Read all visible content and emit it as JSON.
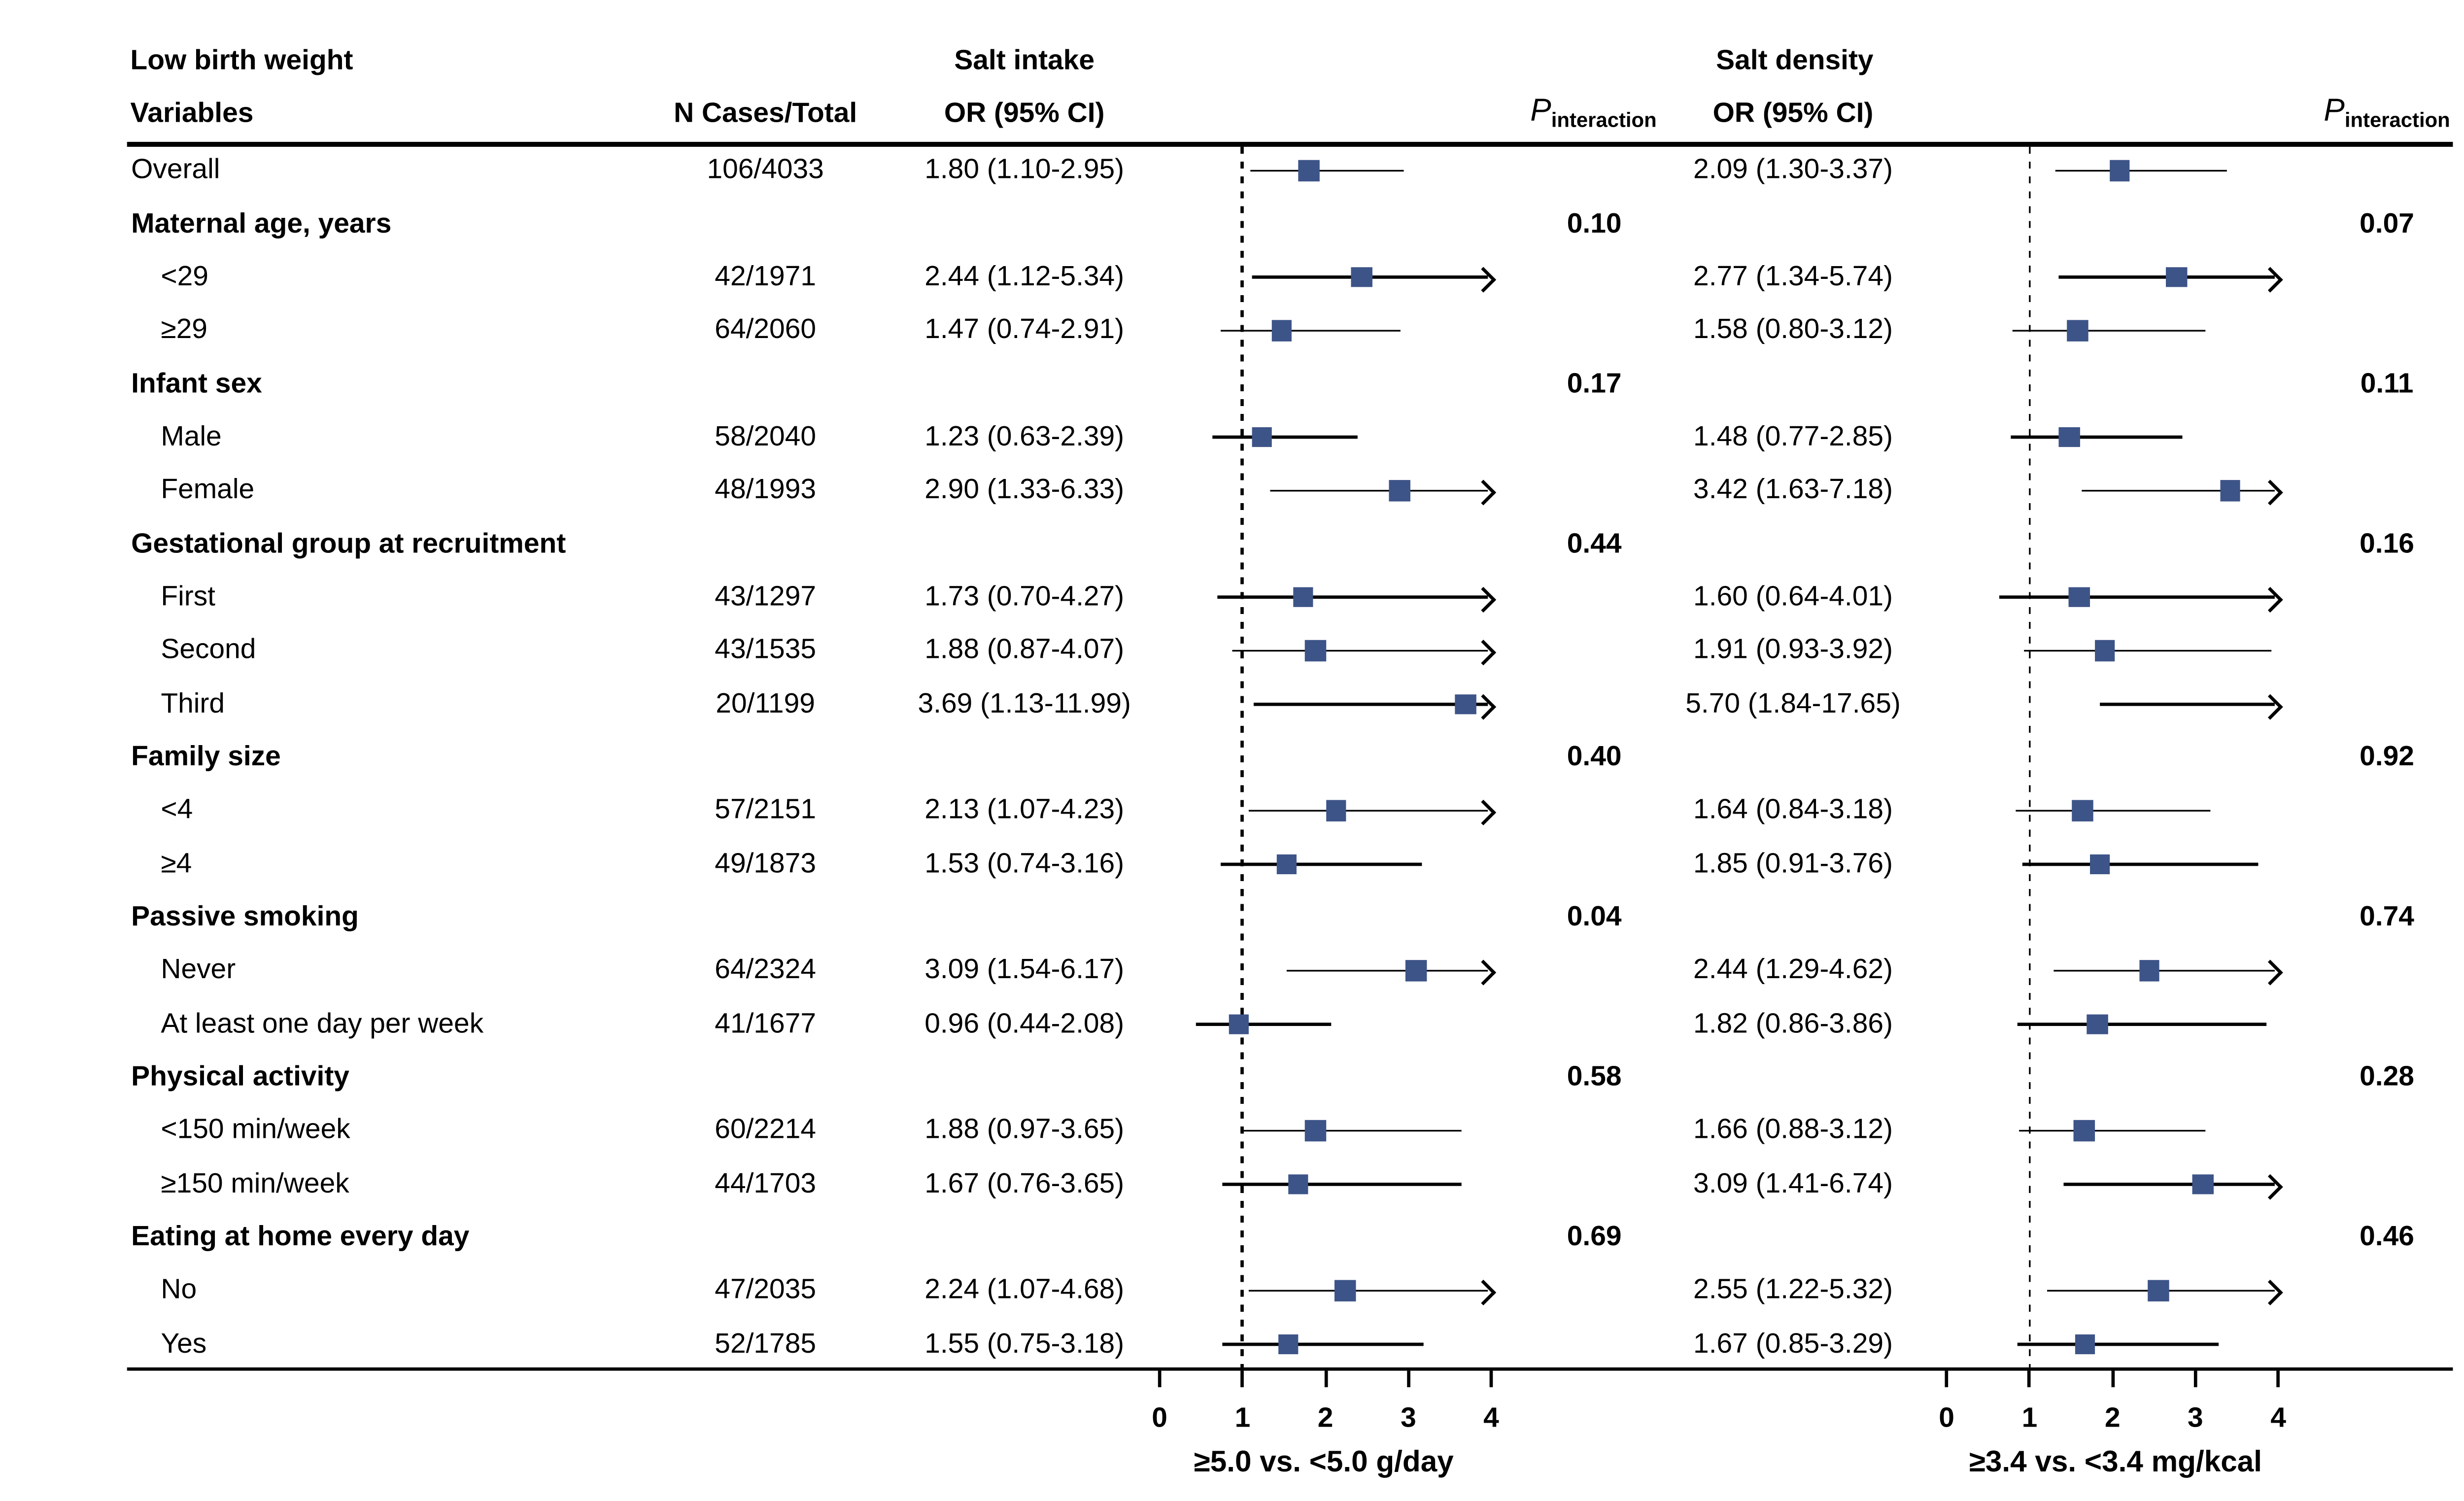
{
  "header": {
    "title_line1": "Low birth weight",
    "title_line2": "Variables",
    "n_header": "N Cases/Total",
    "panel1_title": "Salt intake",
    "panel2_title": "Salt density",
    "or_header1": "OR (95% CI)",
    "or_header2": "OR (95% CI)",
    "p_label": "P",
    "p_sub": "interaction"
  },
  "colors": {
    "marker": "#3D5488",
    "line": "#000000",
    "text": "#000000"
  },
  "chart_data": {
    "type": "forest",
    "panels": [
      {
        "name": "Salt intake",
        "comparison": "≥5.0 vs. <5.0 g/day"
      },
      {
        "name": "Salt density",
        "comparison": "≥3.4 vs. <3.4 mg/kcal"
      }
    ],
    "axis": {
      "ticks": [
        "0",
        "1",
        "2",
        "3",
        "4"
      ],
      "tick_values": [
        0,
        1,
        2,
        3,
        4
      ],
      "xmin": 0,
      "xmax": 4,
      "ref_line": 1,
      "clip_max": 4,
      "left_title": "≥5.0 vs. <5.0 g/day",
      "right_title": "≥3.4 vs. <3.4 mg/kcal"
    },
    "rows": [
      {
        "type": "data",
        "indent": false,
        "label": "Overall",
        "n": "106/4033",
        "intake": {
          "text": "1.80 (1.10-2.95)",
          "or": 1.8,
          "lo": 1.1,
          "hi": 2.95
        },
        "density": {
          "text": "2.09 (1.30-3.37)",
          "or": 2.09,
          "lo": 1.3,
          "hi": 3.37
        },
        "p_intake": "",
        "p_density": ""
      },
      {
        "type": "group",
        "indent": false,
        "label": "Maternal age, years",
        "n": "",
        "p_intake": "0.10",
        "p_density": "0.07"
      },
      {
        "type": "data",
        "indent": true,
        "label": "<29",
        "n": "42/1971",
        "intake": {
          "text": "2.44 (1.12-5.34)",
          "or": 2.44,
          "lo": 1.12,
          "hi": 5.34
        },
        "density": {
          "text": "2.77 (1.34-5.74)",
          "or": 2.77,
          "lo": 1.34,
          "hi": 5.74
        },
        "p_intake": "",
        "p_density": ""
      },
      {
        "type": "data",
        "indent": true,
        "label": "≥29",
        "n": "64/2060",
        "intake": {
          "text": "1.47 (0.74-2.91)",
          "or": 1.47,
          "lo": 0.74,
          "hi": 2.91
        },
        "density": {
          "text": "1.58 (0.80-3.12)",
          "or": 1.58,
          "lo": 0.8,
          "hi": 3.12
        },
        "p_intake": "",
        "p_density": ""
      },
      {
        "type": "group",
        "indent": false,
        "label": "Infant sex",
        "n": "",
        "p_intake": "0.17",
        "p_density": "0.11"
      },
      {
        "type": "data",
        "indent": true,
        "label": "Male",
        "n": "58/2040",
        "intake": {
          "text": "1.23 (0.63-2.39)",
          "or": 1.23,
          "lo": 0.63,
          "hi": 2.39
        },
        "density": {
          "text": "1.48 (0.77-2.85)",
          "or": 1.48,
          "lo": 0.77,
          "hi": 2.85
        },
        "p_intake": "",
        "p_density": ""
      },
      {
        "type": "data",
        "indent": true,
        "label": "Female",
        "n": "48/1993",
        "intake": {
          "text": "2.90 (1.33-6.33)",
          "or": 2.9,
          "lo": 1.33,
          "hi": 6.33
        },
        "density": {
          "text": "3.42 (1.63-7.18)",
          "or": 3.42,
          "lo": 1.63,
          "hi": 7.18
        },
        "p_intake": "",
        "p_density": ""
      },
      {
        "type": "group",
        "indent": false,
        "label": "Gestational group at recruitment",
        "n": "",
        "p_intake": "0.44",
        "p_density": "0.16"
      },
      {
        "type": "data",
        "indent": true,
        "label": "First",
        "n": "43/1297",
        "intake": {
          "text": "1.73 (0.70-4.27)",
          "or": 1.73,
          "lo": 0.7,
          "hi": 4.27
        },
        "density": {
          "text": "1.60 (0.64-4.01)",
          "or": 1.6,
          "lo": 0.64,
          "hi": 4.01
        },
        "p_intake": "",
        "p_density": ""
      },
      {
        "type": "data",
        "indent": true,
        "label": "Second",
        "n": "43/1535",
        "intake": {
          "text": "1.88 (0.87-4.07)",
          "or": 1.88,
          "lo": 0.87,
          "hi": 4.07
        },
        "density": {
          "text": "1.91 (0.93-3.92)",
          "or": 1.91,
          "lo": 0.93,
          "hi": 3.92
        },
        "p_intake": "",
        "p_density": ""
      },
      {
        "type": "data",
        "indent": true,
        "label": "Third",
        "n": "20/1199",
        "intake": {
          "text": "3.69 (1.13-11.99)",
          "or": 3.69,
          "lo": 1.13,
          "hi": 11.99
        },
        "density": {
          "text": "5.70 (1.84-17.65)",
          "or": 5.7,
          "lo": 1.84,
          "hi": 17.65
        },
        "p_intake": "",
        "p_density": ""
      },
      {
        "type": "group",
        "indent": false,
        "label": "Family size",
        "n": "",
        "p_intake": "0.40",
        "p_density": "0.92"
      },
      {
        "type": "data",
        "indent": true,
        "label": "<4",
        "n": "57/2151",
        "intake": {
          "text": "2.13 (1.07-4.23)",
          "or": 2.13,
          "lo": 1.07,
          "hi": 4.23
        },
        "density": {
          "text": "1.64 (0.84-3.18)",
          "or": 1.64,
          "lo": 0.84,
          "hi": 3.18
        },
        "p_intake": "",
        "p_density": ""
      },
      {
        "type": "data",
        "indent": true,
        "label": "≥4",
        "n": "49/1873",
        "intake": {
          "text": "1.53 (0.74-3.16)",
          "or": 1.53,
          "lo": 0.74,
          "hi": 3.16
        },
        "density": {
          "text": "1.85 (0.91-3.76)",
          "or": 1.85,
          "lo": 0.91,
          "hi": 3.76
        },
        "p_intake": "",
        "p_density": ""
      },
      {
        "type": "group",
        "indent": false,
        "label": "Passive smoking",
        "n": "",
        "p_intake": "0.04",
        "p_density": "0.74"
      },
      {
        "type": "data",
        "indent": true,
        "label": "Never",
        "n": "64/2324",
        "intake": {
          "text": "3.09 (1.54-6.17)",
          "or": 3.09,
          "lo": 1.54,
          "hi": 6.17
        },
        "density": {
          "text": "2.44 (1.29-4.62)",
          "or": 2.44,
          "lo": 1.29,
          "hi": 4.62
        },
        "p_intake": "",
        "p_density": ""
      },
      {
        "type": "data",
        "indent": true,
        "label": "At least one day per week",
        "n": "41/1677",
        "intake": {
          "text": "0.96 (0.44-2.08)",
          "or": 0.96,
          "lo": 0.44,
          "hi": 2.08
        },
        "density": {
          "text": "1.82 (0.86-3.86)",
          "or": 1.82,
          "lo": 0.86,
          "hi": 3.86
        },
        "p_intake": "",
        "p_density": ""
      },
      {
        "type": "group",
        "indent": false,
        "label": "Physical activity",
        "n": "",
        "p_intake": "0.58",
        "p_density": "0.28"
      },
      {
        "type": "data",
        "indent": true,
        "label": "<150 min/week",
        "n": "60/2214",
        "intake": {
          "text": "1.88 (0.97-3.65)",
          "or": 1.88,
          "lo": 0.97,
          "hi": 3.65
        },
        "density": {
          "text": "1.66 (0.88-3.12)",
          "or": 1.66,
          "lo": 0.88,
          "hi": 3.12
        },
        "p_intake": "",
        "p_density": ""
      },
      {
        "type": "data",
        "indent": true,
        "label": "≥150 min/week",
        "n": "44/1703",
        "intake": {
          "text": "1.67 (0.76-3.65)",
          "or": 1.67,
          "lo": 0.76,
          "hi": 3.65
        },
        "density": {
          "text": "3.09 (1.41-6.74)",
          "or": 3.09,
          "lo": 1.41,
          "hi": 6.74
        },
        "p_intake": "",
        "p_density": ""
      },
      {
        "type": "group",
        "indent": false,
        "label": "Eating at home every day",
        "n": "",
        "p_intake": "0.69",
        "p_density": "0.46"
      },
      {
        "type": "data",
        "indent": true,
        "label": "No",
        "n": "47/2035",
        "intake": {
          "text": "2.24 (1.07-4.68)",
          "or": 2.24,
          "lo": 1.07,
          "hi": 4.68
        },
        "density": {
          "text": "2.55 (1.22-5.32)",
          "or": 2.55,
          "lo": 1.22,
          "hi": 5.32
        },
        "p_intake": "",
        "p_density": ""
      },
      {
        "type": "data",
        "indent": true,
        "label": "Yes",
        "n": "52/1785",
        "intake": {
          "text": "1.55 (0.75-3.18)",
          "or": 1.55,
          "lo": 0.75,
          "hi": 3.18
        },
        "density": {
          "text": "1.67 (0.85-3.29)",
          "or": 1.67,
          "lo": 0.85,
          "hi": 3.29
        },
        "p_intake": "",
        "p_density": ""
      }
    ]
  }
}
